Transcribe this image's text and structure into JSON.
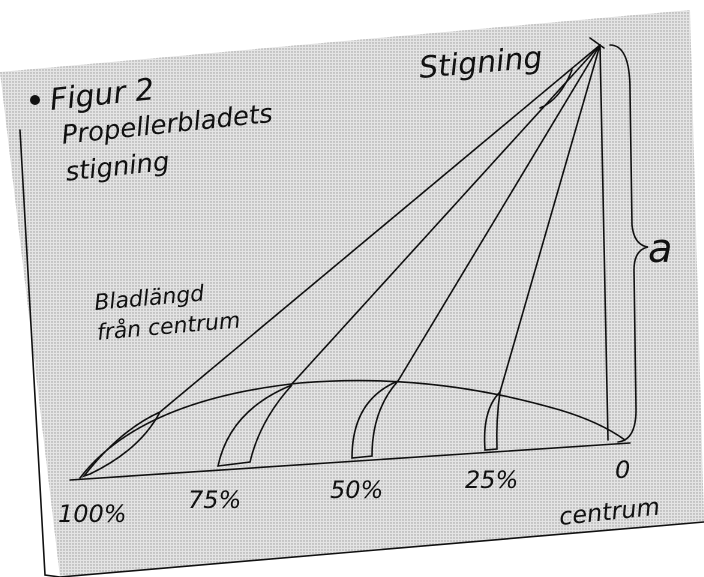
{
  "figure": {
    "label": "Figur 2",
    "title_lines": [
      "Propellerbladets",
      "stigning"
    ]
  },
  "pitch_label": "Stigning",
  "height_label": "a",
  "blade_length_label": {
    "lines": [
      "Bladlängd",
      "från centrum"
    ]
  },
  "positions": [
    "100%",
    "75%",
    "50%",
    "25%",
    "0"
  ],
  "center_label": "centrum"
}
